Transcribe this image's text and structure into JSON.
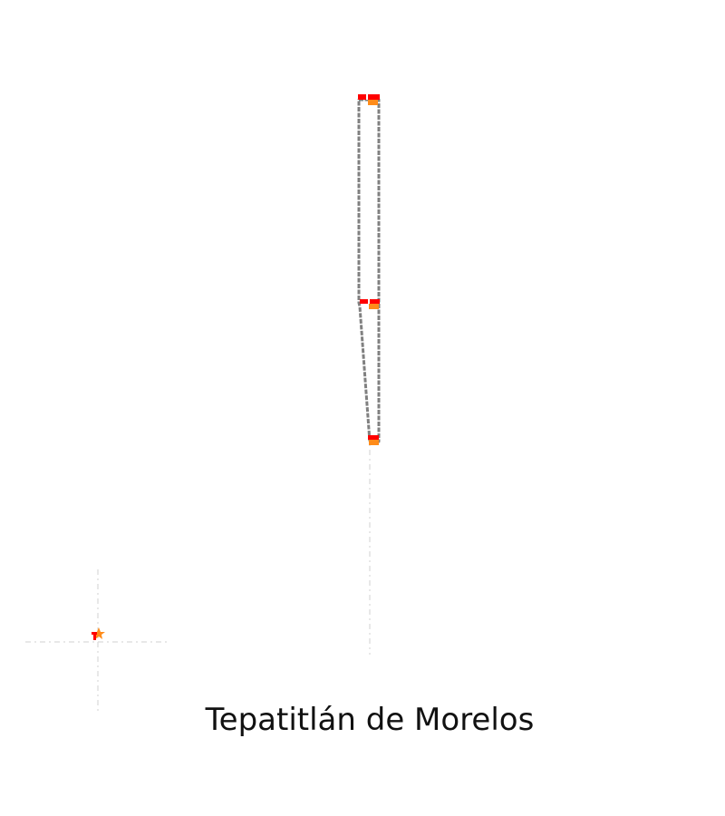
{
  "map": {
    "place_name": "Tepatitlán de Morelos",
    "colors": {
      "background": "#ffffff",
      "route_outline": "#808080",
      "route_fill": "#ffffff",
      "marker_primary": "#ff0000",
      "marker_secondary": "#ff8c1a",
      "guide_lines": "#d9d9d9"
    },
    "features": [
      {
        "name": "route-corridor",
        "kind": "road"
      },
      {
        "name": "marker-north",
        "kind": "stop"
      },
      {
        "name": "marker-middle",
        "kind": "stop"
      },
      {
        "name": "marker-south",
        "kind": "stop"
      },
      {
        "name": "marker-west",
        "kind": "point"
      }
    ]
  }
}
